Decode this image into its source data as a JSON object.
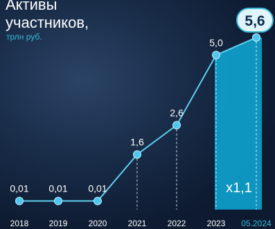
{
  "header": {
    "title_line1": "Активы",
    "title_line2": "участников,",
    "subtitle": "трлн руб."
  },
  "chart_data": {
    "type": "line",
    "x": [
      "2018",
      "2019",
      "2020",
      "2021",
      "2022",
      "2023",
      "05.2024"
    ],
    "values": [
      0.01,
      0.01,
      0.01,
      1.6,
      2.6,
      5.0,
      5.6
    ],
    "data_labels": [
      "0,01",
      "0,01",
      "0,01",
      "1,6",
      "2,6",
      "5,0",
      "5,6"
    ],
    "highlight_label": "5,6",
    "growth_label": "x1,1",
    "ylim": [
      0,
      6
    ],
    "grid": false,
    "colors": {
      "line": "#5fd0f0",
      "point": "#4fc6ee",
      "highlight_fill": "#0ea3cf",
      "badge_bg": "#dff4fb",
      "badge_text": "#0c2a4a",
      "last_tick": "#35b9d8"
    }
  }
}
